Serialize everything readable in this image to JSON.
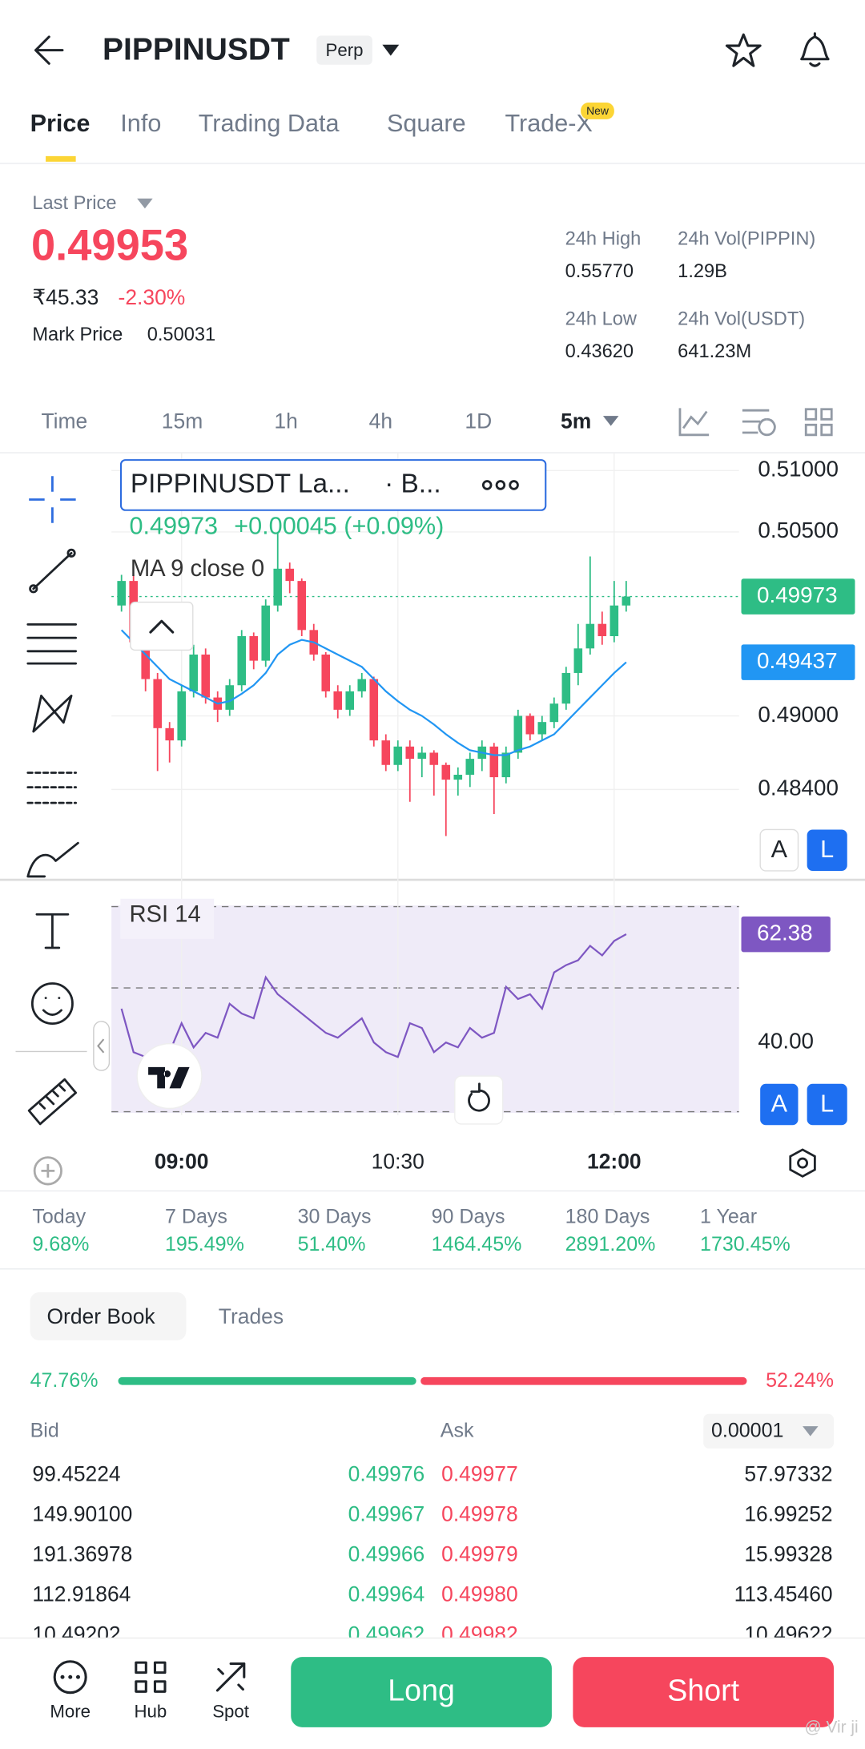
{
  "header": {
    "title": "PIPPINUSDT",
    "badge": "Perp"
  },
  "tabs": {
    "items": [
      "Price",
      "Info",
      "Trading Data",
      "Square",
      "Trade-X"
    ],
    "badge": "New"
  },
  "price_panel": {
    "label": "Last Price",
    "last_price": "0.49953",
    "fiat": "₹45.33",
    "change": "-2.30%",
    "mark_label": "Mark Price",
    "mark_price": "0.50031",
    "stats": [
      {
        "label": "24h High",
        "value": "0.55770"
      },
      {
        "label": "24h Vol(PIPPIN)",
        "value": "1.29B"
      },
      {
        "label": "24h Low",
        "value": "0.43620"
      },
      {
        "label": "24h Vol(USDT)",
        "value": "641.23M"
      }
    ]
  },
  "intervals": [
    "Time",
    "15m",
    "1h",
    "4h",
    "1D",
    "5m"
  ],
  "chart_data": {
    "type": "candlestick",
    "legend": {
      "title": "PIPPINUSDT La...",
      "source": "· B...",
      "last": "0.49973",
      "change": "+0.00045 (+0.09%)",
      "ma_label": "MA 9 close 0"
    },
    "up_color": "#2ebd85",
    "down_color": "#f6465d",
    "ma_color": "#2196f3",
    "rsi_color": "#7e57c2",
    "categories": [
      null,
      null,
      null,
      null,
      null,
      "09:00",
      null,
      null,
      null,
      null,
      null,
      null,
      null,
      null,
      null,
      null,
      null,
      null,
      null,
      null,
      null,
      null,
      null,
      "10:30",
      null,
      null,
      null,
      null,
      null,
      null,
      null,
      null,
      null,
      null,
      null,
      null,
      null,
      null,
      null,
      null,
      null,
      "12:00",
      null
    ],
    "open": [
      0.499,
      0.501,
      0.496,
      0.493,
      0.489,
      0.488,
      0.492,
      0.495,
      0.4915,
      0.4905,
      0.4925,
      0.4965,
      0.4945,
      0.499,
      0.502,
      0.501,
      0.497,
      0.495,
      0.492,
      0.4905,
      0.492,
      0.493,
      0.488,
      0.486,
      0.4875,
      0.4865,
      0.487,
      0.486,
      0.4848,
      0.4852,
      0.4865,
      0.4875,
      0.485,
      0.487,
      0.49,
      0.4885,
      0.4895,
      0.491,
      0.4935,
      0.4955,
      0.4975,
      0.4965,
      0.499
    ],
    "high": [
      0.5015,
      0.5015,
      0.4965,
      0.4935,
      0.4895,
      0.4925,
      0.4958,
      0.4955,
      0.492,
      0.493,
      0.497,
      0.4968,
      0.4995,
      0.505,
      0.5025,
      0.5012,
      0.4975,
      0.4952,
      0.4925,
      0.4925,
      0.4935,
      0.4932,
      0.4885,
      0.488,
      0.488,
      0.4875,
      0.4872,
      0.4862,
      0.4858,
      0.487,
      0.488,
      0.4878,
      0.4875,
      0.4905,
      0.4902,
      0.49,
      0.4915,
      0.494,
      0.4975,
      0.503,
      0.4985,
      0.501,
      0.501
    ],
    "low": [
      0.4985,
      0.4955,
      0.492,
      0.4855,
      0.4862,
      0.4875,
      0.4915,
      0.491,
      0.4895,
      0.49,
      0.492,
      0.4938,
      0.494,
      0.4985,
      0.5,
      0.4965,
      0.4945,
      0.4915,
      0.4898,
      0.49,
      0.4915,
      0.4875,
      0.4855,
      0.4855,
      0.483,
      0.485,
      0.4835,
      0.4802,
      0.4835,
      0.4842,
      0.4855,
      0.482,
      0.4845,
      0.4865,
      0.488,
      0.488,
      0.489,
      0.4905,
      0.4925,
      0.495,
      0.4958,
      0.496,
      0.4985
    ],
    "close": [
      0.501,
      0.496,
      0.493,
      0.489,
      0.488,
      0.492,
      0.495,
      0.4915,
      0.4905,
      0.4925,
      0.4965,
      0.4945,
      0.499,
      0.502,
      0.501,
      0.497,
      0.495,
      0.492,
      0.4905,
      0.492,
      0.493,
      0.488,
      0.486,
      0.4875,
      0.4865,
      0.487,
      0.486,
      0.4848,
      0.4852,
      0.4865,
      0.4875,
      0.485,
      0.487,
      0.49,
      0.4885,
      0.4895,
      0.491,
      0.4935,
      0.4955,
      0.4975,
      0.4965,
      0.499,
      0.49973
    ],
    "ma": [
      0.497,
      0.496,
      0.495,
      0.494,
      0.493,
      0.4925,
      0.492,
      0.4915,
      0.491,
      0.4912,
      0.4918,
      0.4925,
      0.4935,
      0.495,
      0.4958,
      0.4962,
      0.496,
      0.4955,
      0.495,
      0.4945,
      0.494,
      0.493,
      0.492,
      0.4912,
      0.4905,
      0.49,
      0.4893,
      0.4885,
      0.4878,
      0.4872,
      0.487,
      0.4868,
      0.4868,
      0.4872,
      0.4875,
      0.488,
      0.4885,
      0.4895,
      0.4905,
      0.4915,
      0.4925,
      0.4935,
      0.49437
    ],
    "ylim": [
      0.477,
      0.511
    ],
    "yticks": [
      {
        "value": 0.51,
        "label": "0.51000"
      },
      {
        "value": 0.505,
        "label": "0.50500"
      },
      {
        "value": 0.49,
        "label": "0.49000"
      },
      {
        "value": 0.484,
        "label": "0.48400"
      }
    ],
    "last_tag": {
      "value": 0.49973,
      "label": "0.49973"
    },
    "ma_tag": {
      "value": 0.49437,
      "label": "0.49437"
    },
    "rsi_label": "RSI 14",
    "rsi": [
      47,
      38,
      37,
      39,
      38,
      44,
      39,
      42,
      41,
      48,
      46,
      45,
      53.5,
      50,
      48,
      46,
      44,
      42,
      41,
      43,
      45,
      40,
      38,
      37,
      44,
      43,
      38,
      40,
      39,
      43,
      41,
      42,
      51.5,
      49,
      50,
      47,
      54.5,
      56,
      57,
      60,
      58,
      61,
      62.38
    ],
    "rsi_ylim": [
      25,
      68.8
    ],
    "rsi_yticks": [
      {
        "value": 40,
        "label": "40.00"
      }
    ],
    "rsi_tag": {
      "value": 62.38,
      "label": "62.38"
    },
    "scale_buttons": [
      "A",
      "L"
    ],
    "grid": true
  },
  "performance": [
    {
      "label": "Today",
      "value": "9.68%"
    },
    {
      "label": "7 Days",
      "value": "195.49%"
    },
    {
      "label": "30 Days",
      "value": "51.40%"
    },
    {
      "label": "90 Days",
      "value": "1464.45%"
    },
    {
      "label": "180 Days",
      "value": "2891.20%"
    },
    {
      "label": "1 Year",
      "value": "1730.45%"
    }
  ],
  "order_book": {
    "tabs": [
      "Order Book",
      "Trades"
    ],
    "depth": {
      "values": [
        47.76,
        52.24
      ],
      "value_labels": [
        "47.76%",
        "52.24%"
      ]
    },
    "bid_label": "Bid",
    "ask_label": "Ask",
    "precision": "0.00001",
    "rows": [
      [
        "99.45224",
        "0.49976",
        "0.49977",
        "57.97332"
      ],
      [
        "149.90100",
        "0.49967",
        "0.49978",
        "16.99252"
      ],
      [
        "191.36978",
        "0.49966",
        "0.49979",
        "15.99328"
      ],
      [
        "112.91864",
        "0.49964",
        "0.49980",
        "113.45460"
      ],
      [
        "10.49202",
        "0.49962",
        "0.49982",
        "10.49622"
      ]
    ]
  },
  "bottom_bar": {
    "nav": [
      "More",
      "Hub",
      "Spot"
    ],
    "long": "Long",
    "short": "Short"
  },
  "watermark": "@ Vir ji"
}
